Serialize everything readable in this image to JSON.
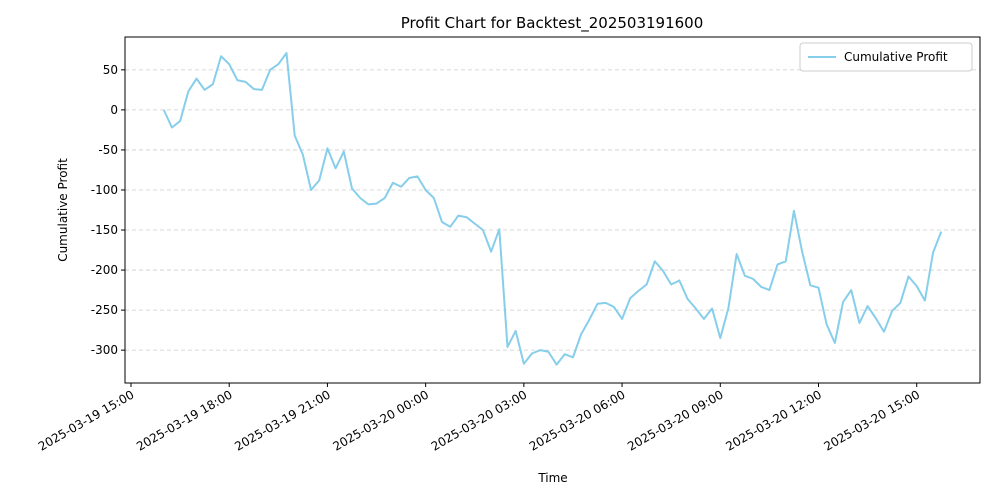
{
  "chart_data": {
    "type": "line",
    "title": "Profit Chart for Backtest_202503191600",
    "x_label": "Time",
    "y_label": "Cumulative Profit",
    "x": [
      "2025-03-19 16:00",
      "2025-03-19 16:15",
      "2025-03-19 16:30",
      "2025-03-19 16:45",
      "2025-03-19 17:00",
      "2025-03-19 17:15",
      "2025-03-19 17:30",
      "2025-03-19 17:45",
      "2025-03-19 18:00",
      "2025-03-19 18:15",
      "2025-03-19 18:30",
      "2025-03-19 18:45",
      "2025-03-19 19:00",
      "2025-03-19 19:15",
      "2025-03-19 19:30",
      "2025-03-19 19:45",
      "2025-03-19 20:00",
      "2025-03-19 20:15",
      "2025-03-19 20:30",
      "2025-03-19 20:45",
      "2025-03-19 21:00",
      "2025-03-19 21:15",
      "2025-03-19 21:30",
      "2025-03-19 21:45",
      "2025-03-19 22:00",
      "2025-03-19 22:15",
      "2025-03-19 22:30",
      "2025-03-19 22:45",
      "2025-03-19 23:00",
      "2025-03-19 23:15",
      "2025-03-19 23:30",
      "2025-03-19 23:45",
      "2025-03-20 00:00",
      "2025-03-20 00:15",
      "2025-03-20 00:30",
      "2025-03-20 00:45",
      "2025-03-20 01:00",
      "2025-03-20 01:15",
      "2025-03-20 01:30",
      "2025-03-20 01:45",
      "2025-03-20 02:00",
      "2025-03-20 02:15",
      "2025-03-20 02:30",
      "2025-03-20 02:45",
      "2025-03-20 03:00",
      "2025-03-20 03:15",
      "2025-03-20 03:30",
      "2025-03-20 03:45",
      "2025-03-20 04:00",
      "2025-03-20 04:15",
      "2025-03-20 04:30",
      "2025-03-20 04:45",
      "2025-03-20 05:00",
      "2025-03-20 05:15",
      "2025-03-20 05:30",
      "2025-03-20 05:45",
      "2025-03-20 06:00",
      "2025-03-20 06:15",
      "2025-03-20 06:30",
      "2025-03-20 06:45",
      "2025-03-20 07:00",
      "2025-03-20 07:15",
      "2025-03-20 07:30",
      "2025-03-20 07:45",
      "2025-03-20 08:00",
      "2025-03-20 08:15",
      "2025-03-20 08:30",
      "2025-03-20 08:45",
      "2025-03-20 09:00",
      "2025-03-20 09:15",
      "2025-03-20 09:30",
      "2025-03-20 09:45",
      "2025-03-20 10:00",
      "2025-03-20 10:15",
      "2025-03-20 10:30",
      "2025-03-20 10:45",
      "2025-03-20 11:00",
      "2025-03-20 11:15",
      "2025-03-20 11:30",
      "2025-03-20 11:45",
      "2025-03-20 12:00",
      "2025-03-20 12:15",
      "2025-03-20 12:30",
      "2025-03-20 12:45",
      "2025-03-20 13:00",
      "2025-03-20 13:15",
      "2025-03-20 13:30",
      "2025-03-20 13:45",
      "2025-03-20 14:00",
      "2025-03-20 14:15",
      "2025-03-20 14:30",
      "2025-03-20 14:45",
      "2025-03-20 15:00",
      "2025-03-20 15:15",
      "2025-03-20 15:30",
      "2025-03-20 15:45"
    ],
    "series": [
      {
        "name": "Cumulative Profit",
        "color": "#87ceeb",
        "values": [
          0,
          -22,
          -14,
          23,
          39,
          25,
          32,
          67,
          57,
          37,
          35,
          26,
          25,
          50,
          57,
          71,
          -32,
          -56,
          -100,
          -88,
          -48,
          -73,
          -52,
          -98,
          -110,
          -118,
          -117,
          -110,
          -91,
          -96,
          -85,
          -83,
          -100,
          -110,
          -140,
          -146,
          -132,
          -134,
          -142,
          -150,
          -177,
          -149,
          -296,
          -276,
          -317,
          -304,
          -300,
          -302,
          -318,
          -305,
          -309,
          -280,
          -262,
          -242,
          -241,
          -246,
          -261,
          -235,
          -226,
          -218,
          -189,
          -201,
          -218,
          -213,
          -236,
          -248,
          -261,
          -248,
          -285,
          -247,
          -180,
          -207,
          -211,
          -221,
          -225,
          -193,
          -189,
          -126,
          -177,
          -219,
          -222,
          -268,
          -291,
          -240,
          -225,
          -266,
          -245,
          -260,
          -277,
          -251,
          -241,
          -208,
          -220,
          -238,
          -178,
          -152
        ]
      }
    ],
    "xlim": [
      "2025-03-19 14:49",
      "2025-03-20 16:56"
    ],
    "xticks": [
      "2025-03-19 15:00",
      "2025-03-19 18:00",
      "2025-03-19 21:00",
      "2025-03-20 00:00",
      "2025-03-20 03:00",
      "2025-03-20 06:00",
      "2025-03-20 09:00",
      "2025-03-20 12:00",
      "2025-03-20 15:00"
    ],
    "ylim": [
      -341,
      91
    ],
    "yticks": [
      -300,
      -250,
      -200,
      -150,
      -100,
      -50,
      0,
      50
    ],
    "grid": true,
    "legend": "upper right"
  }
}
